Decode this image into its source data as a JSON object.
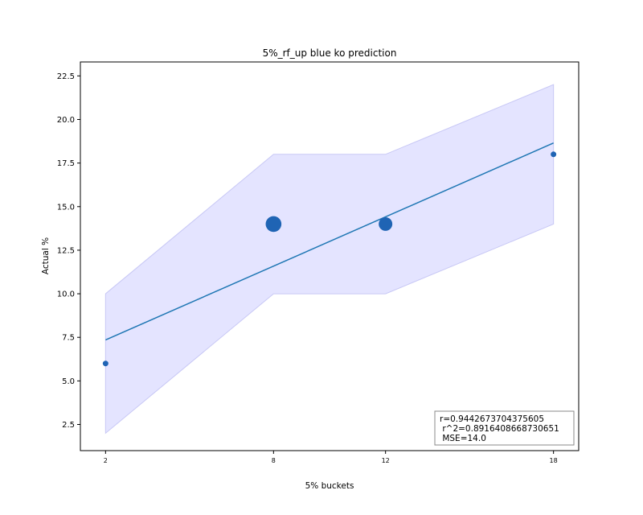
{
  "chart_data": {
    "type": "scatter",
    "title": "5%_rf_up blue ko prediction",
    "xlabel": "5% buckets",
    "ylabel": "Actual %",
    "x_ticks": [
      2,
      8,
      12,
      18
    ],
    "y_ticks": [
      2.5,
      5.0,
      7.5,
      10.0,
      12.5,
      15.0,
      17.5,
      20.0,
      22.5
    ],
    "y_tick_labels": [
      "2.5",
      "5.0",
      "7.5",
      "10.0",
      "12.5",
      "15.0",
      "17.5",
      "20.0",
      "22.5"
    ],
    "xlim": [
      1.1,
      18.9
    ],
    "ylim": [
      1.0,
      23.3
    ],
    "points": {
      "x": [
        2,
        8,
        12,
        18
      ],
      "y": [
        6.0,
        14.0,
        14.0,
        18.0
      ],
      "relative_size": [
        1,
        4,
        3,
        1
      ]
    },
    "fit_line": {
      "x": [
        2,
        18
      ],
      "y": [
        7.35,
        18.65
      ]
    },
    "band": {
      "x": [
        2,
        8,
        12,
        18
      ],
      "lower": [
        2.0,
        10.0,
        10.0,
        14.0
      ],
      "upper": [
        10.0,
        18.0,
        18.0,
        22.0
      ]
    },
    "stats_box": {
      "placement": "bottom-right",
      "lines": [
        "r=0.9442673704375605",
        " r^2=0.8916408668730651",
        " MSE=14.0"
      ]
    },
    "colors": {
      "points": "#1f64b4",
      "line": "#1f77b4",
      "band_fill": "#e1e1ff",
      "band_edge": "#c8c8f5"
    },
    "grid": false
  }
}
